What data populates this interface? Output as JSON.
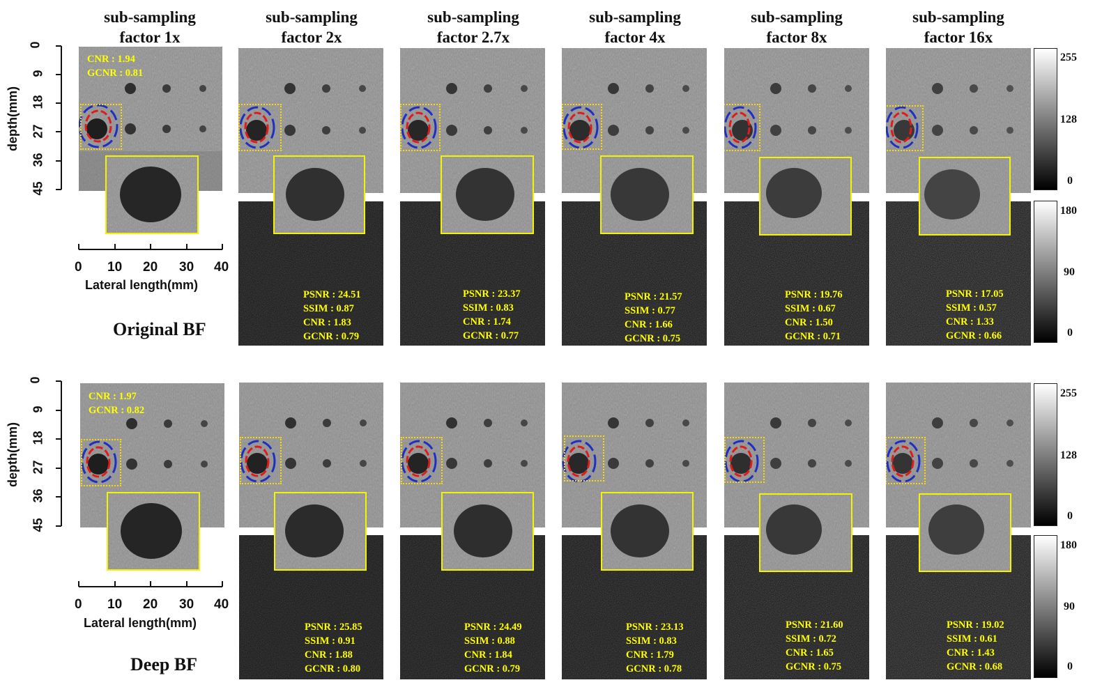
{
  "column_titles": [
    {
      "line1": "sub-sampling",
      "line2": "factor 1x"
    },
    {
      "line1": "sub-sampling",
      "line2": "factor 2x"
    },
    {
      "line1": "sub-sampling",
      "line2": "factor 2.7x"
    },
    {
      "line1": "sub-sampling",
      "line2": "factor 4x"
    },
    {
      "line1": "sub-sampling",
      "line2": "factor 8x"
    },
    {
      "line1": "sub-sampling",
      "line2": "factor 16x"
    }
  ],
  "rows": [
    {
      "label": "Original BF",
      "reference": {
        "cnr": "CNR : 1.94",
        "gcnr": "GCNR : 0.81"
      },
      "metrics": [
        {
          "psnr": "PSNR : 24.51",
          "ssim": "SSIM : 0.87",
          "cnr": "CNR : 1.83",
          "gcnr": "GCNR : 0.79"
        },
        {
          "psnr": "PSNR : 23.37",
          "ssim": "SSIM : 0.83",
          "cnr": "CNR : 1.74",
          "gcnr": "GCNR : 0.77"
        },
        {
          "psnr": "PSNR : 21.57",
          "ssim": "SSIM : 0.77",
          "cnr": "CNR : 1.66",
          "gcnr": "GCNR : 0.75"
        },
        {
          "psnr": "PSNR : 19.76",
          "ssim": "SSIM : 0.67",
          "cnr": "CNR : 1.50",
          "gcnr": "GCNR : 0.71"
        },
        {
          "psnr": "PSNR : 17.05",
          "ssim": "SSIM : 0.57",
          "cnr": "CNR : 1.33",
          "gcnr": "GCNR : 0.66"
        }
      ]
    },
    {
      "label": "Deep BF",
      "reference": {
        "cnr": "CNR : 1.97",
        "gcnr": "GCNR : 0.82"
      },
      "metrics": [
        {
          "psnr": "PSNR : 25.85",
          "ssim": "SSIM : 0.91",
          "cnr": "CNR : 1.88",
          "gcnr": "GCNR : 0.80"
        },
        {
          "psnr": "PSNR : 24.49",
          "ssim": "SSIM : 0.88",
          "cnr": "CNR : 1.84",
          "gcnr": "GCNR : 0.79"
        },
        {
          "psnr": "PSNR : 23.13",
          "ssim": "SSIM : 0.83",
          "cnr": "CNR : 1.79",
          "gcnr": "GCNR : 0.78"
        },
        {
          "psnr": "PSNR : 21.60",
          "ssim": "SSIM : 0.72",
          "cnr": "CNR : 1.65",
          "gcnr": "GCNR : 0.75"
        },
        {
          "psnr": "PSNR : 19.02",
          "ssim": "SSIM : 0.61",
          "cnr": "CNR : 1.43",
          "gcnr": "GCNR : 0.68"
        }
      ]
    }
  ],
  "axes": {
    "depth_label": "depth(mm)",
    "depth_ticks": [
      "0",
      "9",
      "18",
      "27",
      "36",
      "45"
    ],
    "lateral_label": "Lateral length(mm)",
    "lateral_ticks": [
      "0",
      "10",
      "20",
      "30",
      "40"
    ]
  },
  "colorbars": {
    "bmode_ticks": [
      "255",
      "128",
      "0"
    ],
    "error_ticks": [
      "180",
      "90",
      "0"
    ]
  },
  "colors": {
    "inset_border": "#f4f400",
    "metric_text": "#ffff00",
    "inner_roi": "#e11b1b",
    "outer_roi": "#1f2fbf"
  }
}
